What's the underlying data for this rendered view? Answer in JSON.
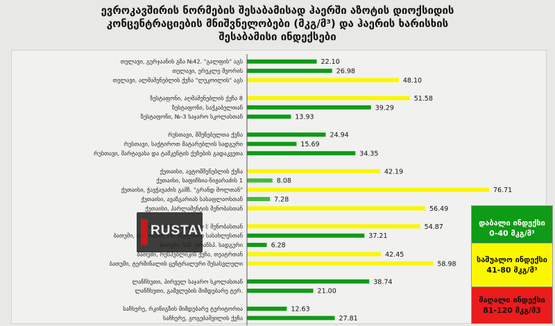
{
  "title": {
    "line1": "ევროკავშირის ნორმების შესაბამისად ჰაერში აზოტის დიოქსიდის",
    "line2": "კონცენტრაციების მნიშვნელობები (მკგ/მ³) და ჰაერის ხარისხის",
    "line3": "შესაბამისი ინდექსები"
  },
  "colors": {
    "low": "#0f9b16",
    "low_alt": "#48b83a",
    "mid": "#fbf700",
    "high": "#ea1c1c"
  },
  "legend": {
    "low": {
      "line1": "დაბალი ინდექსი",
      "line2": "0-40 მკგ/მ³"
    },
    "mid": {
      "line1": "საშუალო ინდექსი",
      "line2": "41-80 მკგ/მ³"
    },
    "high": {
      "line1": "მაღალი ინდექსი",
      "line2": "81-120 მკგ/მ3"
    }
  },
  "watermark": {
    "text": "RUSTAVI"
  },
  "chart_data": {
    "type": "bar",
    "orientation": "horizontal",
    "title": "ევროკავშირის ნორმების შესაბამისად ჰაერში აზოტის დიოქსიდის კონცენტრაციების მნიშვნელობები (მკგ/მ³) და ჰაერის ხარისხის შესაბამისი ინდექსები",
    "xlim": [
      0,
      80
    ],
    "grid": false,
    "legend_position": "right",
    "groups": [
      {
        "rows": [
          {
            "label": "თელავი, გურჯაანის გზა №42. \"გალფის\" აგს",
            "value": 22.1,
            "value_label": "22.10",
            "category": "low"
          },
          {
            "label": "თელავი, ერეკლე მეორის",
            "value": 26.98,
            "value_label": "26.98",
            "category": "low"
          },
          {
            "label": "თელავი, ალმაშენებლის ქუჩა \"ლუკოილის\" აგს",
            "value": 48.1,
            "value_label": "48.10",
            "category": "mid"
          }
        ]
      },
      {
        "rows": [
          {
            "label": "ზესტაფონი, აღმაშენებლის ქუჩა 8",
            "value": 51.58,
            "value_label": "51.58",
            "category": "mid"
          },
          {
            "label": "ზესტაფონი, საქკაბელთან",
            "value": 39.29,
            "value_label": "39.29",
            "category": "low"
          },
          {
            "label": "ზესტაფონი, №-3 საჯარო სკოლასთან",
            "value": 13.93,
            "value_label": "13.93",
            "category": "low"
          }
        ]
      },
      {
        "rows": [
          {
            "label": "რუსთავი, მშენებელთა ქუჩა",
            "value": 24.94,
            "value_label": "24.94",
            "category": "low"
          },
          {
            "label": "რუსთავი, საქტიროთ მატარებლის სადგური",
            "value": 15.69,
            "value_label": "15.69",
            "category": "low"
          },
          {
            "label": "რუსთავი, შარტავასა და ტაშკენტის ქუჩების გადაკვეთა",
            "value": 34.35,
            "value_label": "34.35",
            "category": "low"
          }
        ]
      },
      {
        "rows": [
          {
            "label": "ქუთაისი, ავტომშენებლის ქუჩა",
            "value": 42.19,
            "value_label": "42.19",
            "category": "mid"
          },
          {
            "label": "ქუთაისი, საფიჩხია-ნიჟარაძის 1",
            "value": 8.08,
            "value_label": "8.08",
            "category": "low_alt"
          },
          {
            "label": "ქუთაისი, ჭავჭავაძის გამზ. \"გრანდ მოლთან\"",
            "value": 76.71,
            "value_label": "76.71",
            "category": "mid"
          },
          {
            "label": "ქუთაისი, ავაზგარიას სასაფლაოსთან",
            "value": 7.28,
            "value_label": "7.28",
            "category": "low_alt"
          },
          {
            "label": "ქუთაისი, პარლამენტის შენობასთან",
            "value": 56.49,
            "value_label": "56.49",
            "category": "mid"
          }
        ]
      },
      {
        "rows": [
          {
            "label": "ბათუმი, ამბის პოლიციის შენობასთან",
            "value": 54.87,
            "value_label": "54.87",
            "category": "mid"
          },
          {
            "label": "ბათუმი, ასათიანის 14, ინგლისის სასახლესთან",
            "value": 37.21,
            "value_label": "37.21",
            "category": "low"
          },
          {
            "label": "ბათუმი, საზ. ტრანსპ. სადგური",
            "value": 6.28,
            "value_label": "6.28",
            "category": "low"
          },
          {
            "label": "ბათუმი, რესპუბლიკის ქუჩა, თეატრთან",
            "value": 42.45,
            "value_label": "42.45",
            "category": "mid"
          },
          {
            "label": "ბათუმი, ტერმინალის ცენტრალური შესასვლელი",
            "value": 58.98,
            "value_label": "58.98",
            "category": "mid"
          }
        ]
      },
      {
        "rows": [
          {
            "label": "ლანჩხუთი, პირველ საჯარო სკოლასთან",
            "value": 38.74,
            "value_label": "38.74",
            "category": "low"
          },
          {
            "label": "ლანჩხუთი, გამვლების მიმდებარე ტერ.",
            "value": 21.0,
            "value_label": "21.00",
            "category": "low"
          }
        ]
      },
      {
        "rows": [
          {
            "label": "საჩხერე, რკინიგზის მიმდებარე ტერიტორია",
            "value": 12.63,
            "value_label": "12.63",
            "category": "low"
          },
          {
            "label": "საჩხერე, გოგებაშვილის ქუჩა",
            "value": 27.81,
            "value_label": "27.81",
            "category": "low"
          }
        ]
      }
    ]
  }
}
